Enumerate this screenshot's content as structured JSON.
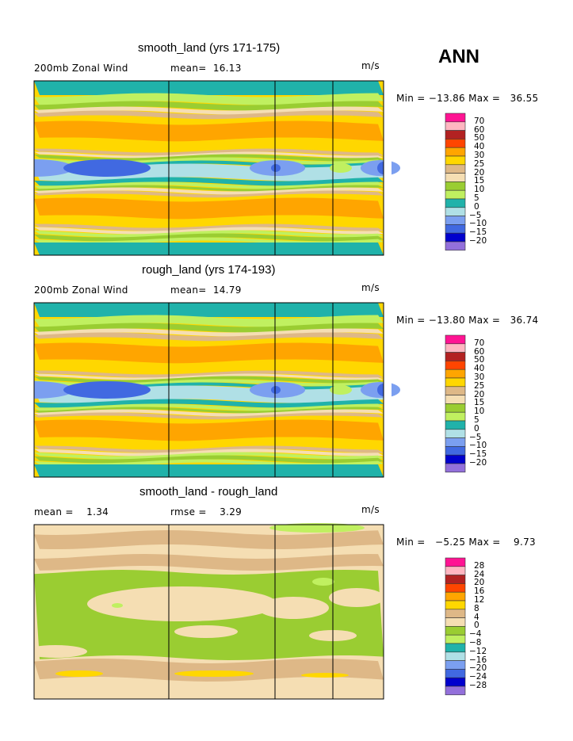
{
  "season": "ANN",
  "chart_data": [
    {
      "type": "heatmap",
      "title": "smooth_land (yrs 171-175)",
      "left_label": "200mb Zonal Wind",
      "center_label": "mean=  16.13",
      "units": "m/s",
      "min_max": "Min = −13.86 Max =   36.55",
      "min": -13.86,
      "max": 36.55,
      "mean": 16.13,
      "legend_levels": [
        "70",
        "60",
        "50",
        "40",
        "30",
        "25",
        "20",
        "15",
        "10",
        "5",
        "0",
        "−5",
        "−10",
        "−15",
        "−20"
      ],
      "legend_colors": [
        "#ff1493",
        "#ffb6c1",
        "#b22222",
        "#ff4500",
        "#ffa500",
        "#ffd700",
        "#deb887",
        "#f5deb3",
        "#9acd32",
        "#c0f060",
        "#20b2aa",
        "#b0e0e6",
        "#7b9ff0",
        "#4169e1",
        "#0000cd",
        "#9370db"
      ]
    },
    {
      "type": "heatmap",
      "title": "rough_land (yrs 174-193)",
      "left_label": "200mb Zonal Wind",
      "center_label": "mean=  14.79",
      "units": "m/s",
      "min_max": "Min = −13.80 Max =   36.74",
      "min": -13.8,
      "max": 36.74,
      "mean": 14.79,
      "legend_levels": [
        "70",
        "60",
        "50",
        "40",
        "30",
        "25",
        "20",
        "15",
        "10",
        "5",
        "0",
        "−5",
        "−10",
        "−15",
        "−20"
      ],
      "legend_colors": [
        "#ff1493",
        "#ffb6c1",
        "#b22222",
        "#ff4500",
        "#ffa500",
        "#ffd700",
        "#deb887",
        "#f5deb3",
        "#9acd32",
        "#c0f060",
        "#20b2aa",
        "#b0e0e6",
        "#7b9ff0",
        "#4169e1",
        "#0000cd",
        "#9370db"
      ]
    },
    {
      "type": "heatmap",
      "title": "smooth_land - rough_land",
      "left_label": "mean =    1.34",
      "center_label": "rmse =    3.29",
      "units": "m/s",
      "min_max": "Min =   −5.25 Max =    9.73",
      "min": -5.25,
      "max": 9.73,
      "mean": 1.34,
      "rmse": 3.29,
      "legend_levels": [
        "28",
        "24",
        "20",
        "16",
        "12",
        "8",
        "4",
        "0",
        "−4",
        "−8",
        "−12",
        "−16",
        "−20",
        "−24",
        "−28"
      ],
      "legend_colors": [
        "#ff1493",
        "#ffb6c1",
        "#b22222",
        "#ff4500",
        "#ffa500",
        "#ffd700",
        "#deb887",
        "#f5deb3",
        "#9acd32",
        "#c0f060",
        "#20b2aa",
        "#b0e0e6",
        "#7b9ff0",
        "#4169e1",
        "#0000cd",
        "#9370db"
      ]
    }
  ]
}
